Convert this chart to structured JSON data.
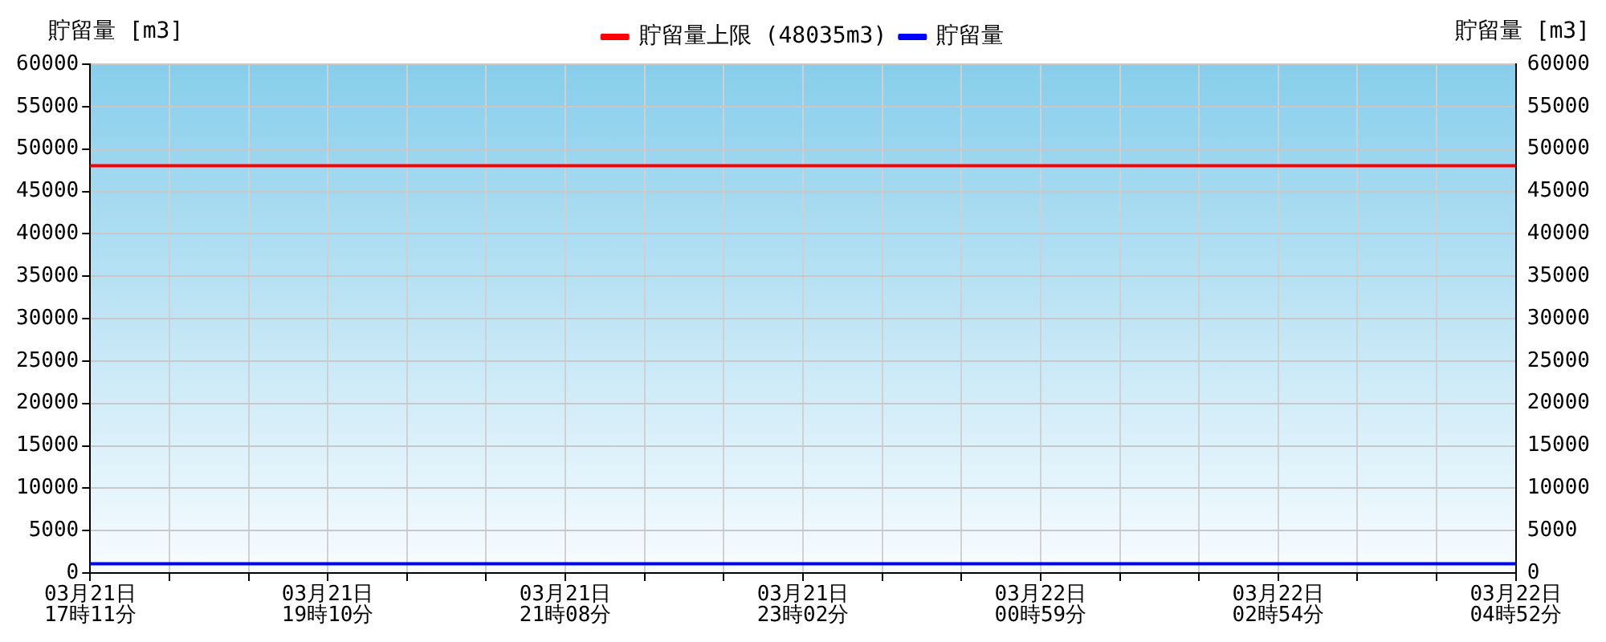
{
  "chart_data": {
    "type": "line",
    "ylabel": "貯留量 [m3]",
    "y2label": "貯留量 [m3]",
    "categories": [
      "03月21日\n17時11分",
      null,
      null,
      "03月21日\n19時10分",
      null,
      null,
      "03月21日\n21時08分",
      null,
      null,
      "03月21日\n23時02分",
      null,
      null,
      "03月22日\n00時59分",
      null,
      null,
      "03月22日\n02時54分",
      null,
      null,
      "03月22日\n04時52分"
    ],
    "series": [
      {
        "name": "貯留量上限 (48035m3)",
        "color": "#ff0000",
        "values": [
          48035,
          48035,
          48035,
          48035,
          48035,
          48035,
          48035,
          48035,
          48035,
          48035,
          48035,
          48035,
          48035,
          48035,
          48035,
          48035,
          48035,
          48035,
          48035
        ]
      },
      {
        "name": "貯留量",
        "color": "#0000ff",
        "values": [
          1100,
          1100,
          1100,
          1100,
          1100,
          1100,
          1100,
          1100,
          1100,
          1100,
          1100,
          1100,
          1100,
          1100,
          1100,
          1100,
          1100,
          1100,
          1100
        ]
      }
    ],
    "ylim": [
      0,
      60000
    ],
    "yticks": [
      0,
      5000,
      10000,
      15000,
      20000,
      25000,
      30000,
      35000,
      40000,
      45000,
      50000,
      55000,
      60000
    ],
    "y2lim": [
      0,
      60000
    ],
    "y2ticks": [
      0,
      5000,
      10000,
      15000,
      20000,
      25000,
      30000,
      35000,
      40000,
      45000,
      50000,
      55000,
      60000
    ],
    "grid": true,
    "legend": "top",
    "marker": "none",
    "line_style": "solid"
  }
}
